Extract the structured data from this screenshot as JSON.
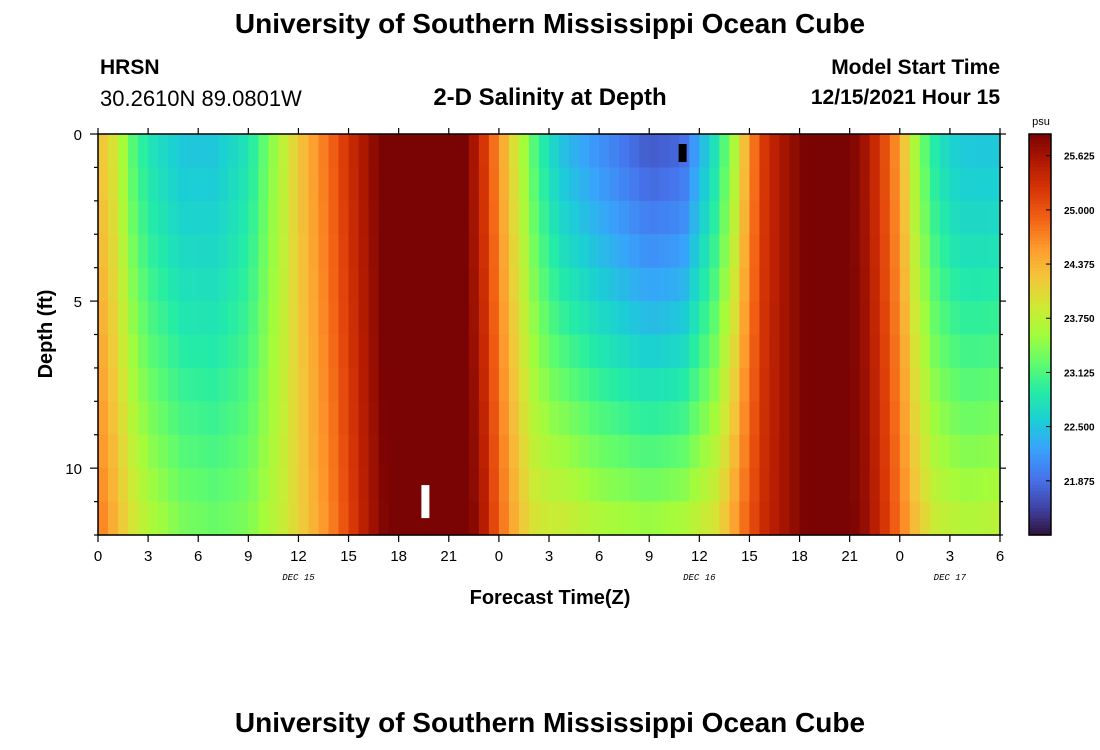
{
  "header": {
    "title": "University of Southern Mississippi Ocean Cube",
    "station": "HRSN",
    "coords": "30.2610N  89.0801W",
    "plot_title": "2-D Salinity at Depth",
    "start_label": "Model Start Time",
    "start_value": "12/15/2021 Hour 15"
  },
  "footer": {
    "title": "University of Southern Mississippi Ocean Cube"
  },
  "chart_data": {
    "type": "heatmap",
    "title": "2-D Salinity at Depth",
    "xlabel": "Forecast Time(Z)",
    "ylabel": "Depth (ft)",
    "x_range_hours": [
      0,
      54
    ],
    "y_range_ft": [
      0,
      12
    ],
    "x_ticks": [
      "0",
      "3",
      "6",
      "9",
      "12",
      "15",
      "18",
      "21",
      "0",
      "3",
      "6",
      "9",
      "12",
      "15",
      "18",
      "21",
      "0",
      "3",
      "6"
    ],
    "y_ticks": [
      "0",
      "5",
      "10"
    ],
    "date_labels": [
      {
        "label": "DEC 15",
        "hour": 12
      },
      {
        "label": "DEC 16",
        "hour": 36
      },
      {
        "label": "DEC 17",
        "hour": 51
      }
    ],
    "colorbar": {
      "unit": "psu",
      "min": 21.25,
      "max": 25.875,
      "ticks": [
        "25.625",
        "25.000",
        "24.375",
        "23.750",
        "23.125",
        "22.500",
        "21.875"
      ],
      "colors": [
        "#30123b",
        "#4145ab",
        "#4675ed",
        "#39a2fc",
        "#1bcfd4",
        "#24eca6",
        "#61fc6c",
        "#a4fc3b",
        "#d1e834",
        "#f3c63a",
        "#fe9b2d",
        "#f36315",
        "#d93806",
        "#b11901",
        "#7a0403"
      ]
    },
    "depths_ft": [
      0,
      2,
      4,
      6,
      8,
      10,
      12
    ],
    "profiles": {
      "hours": [
        0,
        1,
        2,
        3,
        5,
        7,
        9,
        11,
        12,
        14,
        15,
        16,
        17,
        18,
        19,
        20,
        21,
        22,
        23,
        24,
        25,
        26,
        27,
        28,
        30,
        33,
        35,
        37,
        38,
        39,
        40,
        41,
        42,
        43,
        44,
        45,
        46,
        47,
        48,
        49,
        50,
        51,
        52,
        54
      ],
      "surface": [
        24.3,
        23.9,
        23.2,
        22.8,
        22.5,
        22.5,
        22.8,
        23.7,
        24.2,
        24.9,
        25.3,
        25.6,
        25.9,
        26.1,
        26.3,
        26.3,
        26.2,
        25.9,
        25.3,
        24.6,
        23.9,
        23.2,
        22.7,
        22.4,
        22.1,
        21.7,
        21.8,
        22.8,
        23.5,
        24.6,
        25.3,
        25.6,
        25.8,
        26.0,
        26.0,
        25.9,
        25.6,
        25.1,
        24.5,
        23.5,
        22.9,
        22.6,
        22.5,
        22.5
      ],
      "bottom": [
        24.8,
        24.4,
        24.0,
        23.7,
        23.4,
        23.3,
        23.4,
        23.8,
        24.1,
        24.7,
        25.1,
        25.5,
        25.8,
        26.1,
        26.2,
        26.3,
        26.2,
        26.0,
        25.6,
        24.9,
        24.4,
        24.0,
        23.9,
        23.9,
        23.7,
        23.6,
        23.7,
        24.0,
        24.5,
        25.0,
        25.4,
        25.6,
        25.8,
        26.0,
        26.0,
        25.9,
        25.7,
        25.3,
        24.8,
        24.3,
        23.9,
        23.8,
        23.7,
        23.8
      ]
    },
    "markers": [
      {
        "color": "#000000",
        "hour": 35,
        "depth_ft": 0.3
      },
      {
        "color": "#ffffff",
        "hour": 19.6,
        "depth_ft": 11
      }
    ]
  }
}
